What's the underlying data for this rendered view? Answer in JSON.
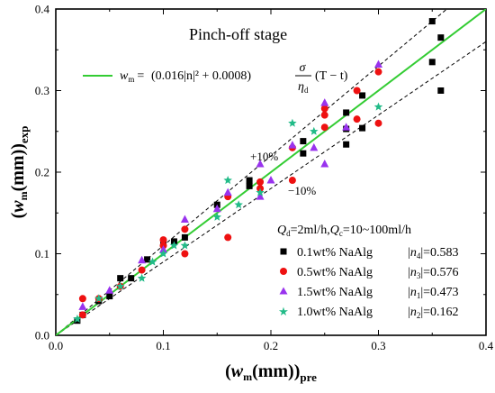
{
  "chart_data": {
    "type": "scatter",
    "title": "Pinch-off  stage",
    "xlim": [
      0,
      0.4
    ],
    "ylim": [
      0,
      0.4
    ],
    "x_ticks": [
      "0.0",
      "0.1",
      "0.2",
      "0.3",
      "0.4"
    ],
    "y_ticks": [
      "0.0",
      "0.1",
      "0.2",
      "0.3",
      "0.4"
    ],
    "xlabel": {
      "open": "(",
      "w": "w",
      "w_sub": "m",
      "unit": "(mm))",
      "sub": "pre"
    },
    "ylabel": {
      "open": "(",
      "w": "w",
      "w_sub": "m",
      "unit": "(mm))",
      "sub": "exp"
    },
    "fit_line": {
      "color": "#33cc33",
      "slope": 1.0,
      "legend": {
        "lhs": "w",
        "lhs_sub": "m",
        "eq": "=",
        "paren": "(0.016|n|² + 0.0008)",
        "num": "σ",
        "den": "η",
        "den_sub": "d",
        "tail": "(T − t)"
      }
    },
    "bands": [
      {
        "label": "+10%",
        "slope": 1.1
      },
      {
        "label": "−10%",
        "slope": 0.9
      }
    ],
    "conditions": "Qd=2ml/h,Qc=10~100ml/h",
    "conditions_parts": {
      "q1": "Q",
      "q1_sub": "d",
      "mid": "=2ml/h,",
      "q2": "Q",
      "q2_sub": "c",
      "end": "=10~100ml/h"
    },
    "series": [
      {
        "name": "0.1wt% NaAlg",
        "n_label": "n",
        "n_sub": "4",
        "n_value": "=0.583",
        "marker": "square",
        "color": "#000000",
        "points": [
          [
            0.02,
            0.018
          ],
          [
            0.025,
            0.025
          ],
          [
            0.04,
            0.042
          ],
          [
            0.05,
            0.048
          ],
          [
            0.06,
            0.07
          ],
          [
            0.07,
            0.07
          ],
          [
            0.085,
            0.093
          ],
          [
            0.1,
            0.113
          ],
          [
            0.11,
            0.115
          ],
          [
            0.12,
            0.12
          ],
          [
            0.15,
            0.16
          ],
          [
            0.18,
            0.19
          ],
          [
            0.18,
            0.183
          ],
          [
            0.23,
            0.238
          ],
          [
            0.23,
            0.223
          ],
          [
            0.27,
            0.273
          ],
          [
            0.27,
            0.253
          ],
          [
            0.27,
            0.234
          ],
          [
            0.285,
            0.254
          ],
          [
            0.285,
            0.294
          ],
          [
            0.35,
            0.385
          ],
          [
            0.358,
            0.365
          ],
          [
            0.35,
            0.335
          ],
          [
            0.358,
            0.3
          ]
        ]
      },
      {
        "name": "0.5wt% NaAlg",
        "n_label": "n",
        "n_sub": "3",
        "n_value": "=0.576",
        "marker": "circle",
        "color": "#ee1111",
        "points": [
          [
            0.025,
            0.045
          ],
          [
            0.025,
            0.025
          ],
          [
            0.04,
            0.045
          ],
          [
            0.06,
            0.06
          ],
          [
            0.08,
            0.08
          ],
          [
            0.1,
            0.117
          ],
          [
            0.1,
            0.11
          ],
          [
            0.12,
            0.13
          ],
          [
            0.12,
            0.1
          ],
          [
            0.16,
            0.17
          ],
          [
            0.16,
            0.12
          ],
          [
            0.19,
            0.188
          ],
          [
            0.19,
            0.18
          ],
          [
            0.22,
            0.19
          ],
          [
            0.22,
            0.23
          ],
          [
            0.25,
            0.255
          ],
          [
            0.25,
            0.27
          ],
          [
            0.25,
            0.278
          ],
          [
            0.28,
            0.265
          ],
          [
            0.28,
            0.3
          ],
          [
            0.3,
            0.323
          ],
          [
            0.3,
            0.26
          ]
        ]
      },
      {
        "name": "1.5wt% NaAlg",
        "n_label": "n",
        "n_sub": "1",
        "n_value": "=0.473",
        "marker": "triangle",
        "color": "#9933ee",
        "points": [
          [
            0.025,
            0.035
          ],
          [
            0.05,
            0.055
          ],
          [
            0.08,
            0.092
          ],
          [
            0.1,
            0.105
          ],
          [
            0.12,
            0.142
          ],
          [
            0.15,
            0.155
          ],
          [
            0.16,
            0.175
          ],
          [
            0.19,
            0.21
          ],
          [
            0.19,
            0.17
          ],
          [
            0.2,
            0.19
          ],
          [
            0.22,
            0.233
          ],
          [
            0.24,
            0.23
          ],
          [
            0.25,
            0.285
          ],
          [
            0.25,
            0.21
          ],
          [
            0.27,
            0.255
          ],
          [
            0.3,
            0.332
          ]
        ]
      },
      {
        "name": "1.0wt% NaAlg",
        "n_label": "n",
        "n_sub": "2",
        "n_value": "=0.162",
        "marker": "star",
        "color": "#22bb88",
        "points": [
          [
            0.02,
            0.02
          ],
          [
            0.04,
            0.045
          ],
          [
            0.06,
            0.06
          ],
          [
            0.08,
            0.07
          ],
          [
            0.09,
            0.09
          ],
          [
            0.1,
            0.1
          ],
          [
            0.11,
            0.11
          ],
          [
            0.12,
            0.11
          ],
          [
            0.15,
            0.145
          ],
          [
            0.16,
            0.19
          ],
          [
            0.17,
            0.16
          ],
          [
            0.19,
            0.175
          ],
          [
            0.22,
            0.26
          ],
          [
            0.24,
            0.25
          ],
          [
            0.3,
            0.28
          ]
        ]
      }
    ]
  }
}
